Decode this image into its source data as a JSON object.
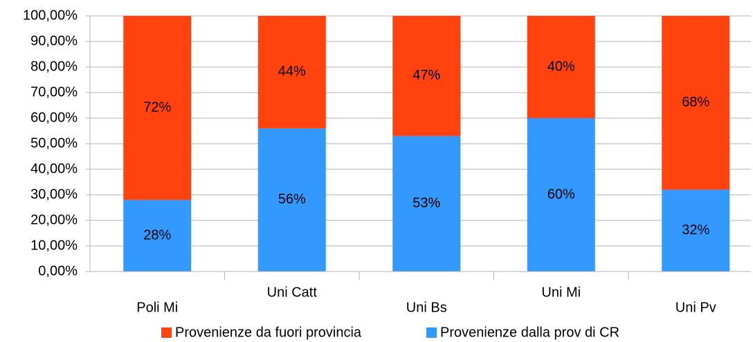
{
  "chart_data": {
    "type": "stacked_bar",
    "categories": [
      "Poli Mi",
      "Uni Catt",
      "Uni Bs",
      "Uni Mi",
      "Uni Pv"
    ],
    "series": [
      {
        "name": "Provenienze dalla prov di CR",
        "color": "#3399ff",
        "values": [
          28,
          56,
          53,
          60,
          32
        ],
        "value_labels": [
          "28%",
          "56%",
          "53%",
          "60%",
          "32%"
        ]
      },
      {
        "name": "Provenienze da fuori provincia",
        "color": "#ff420e",
        "values": [
          72,
          44,
          47,
          40,
          68
        ],
        "value_labels": [
          "72%",
          "44%",
          "47%",
          "40%",
          "68%"
        ]
      }
    ],
    "ylim": [
      0,
      100
    ],
    "yticks": [
      {
        "value": 0,
        "label": "0,00%"
      },
      {
        "value": 10,
        "label": "10,00%"
      },
      {
        "value": 20,
        "label": "20,00%"
      },
      {
        "value": 30,
        "label": "30,00%"
      },
      {
        "value": 40,
        "label": "40,00%"
      },
      {
        "value": 50,
        "label": "50,00%"
      },
      {
        "value": 60,
        "label": "60,00%"
      },
      {
        "value": 70,
        "label": "70,00%"
      },
      {
        "value": 80,
        "label": "80,00%"
      },
      {
        "value": 90,
        "label": "90,00%"
      },
      {
        "value": 100,
        "label": "100,00%"
      }
    ],
    "grid": true,
    "legend": "bottom"
  }
}
